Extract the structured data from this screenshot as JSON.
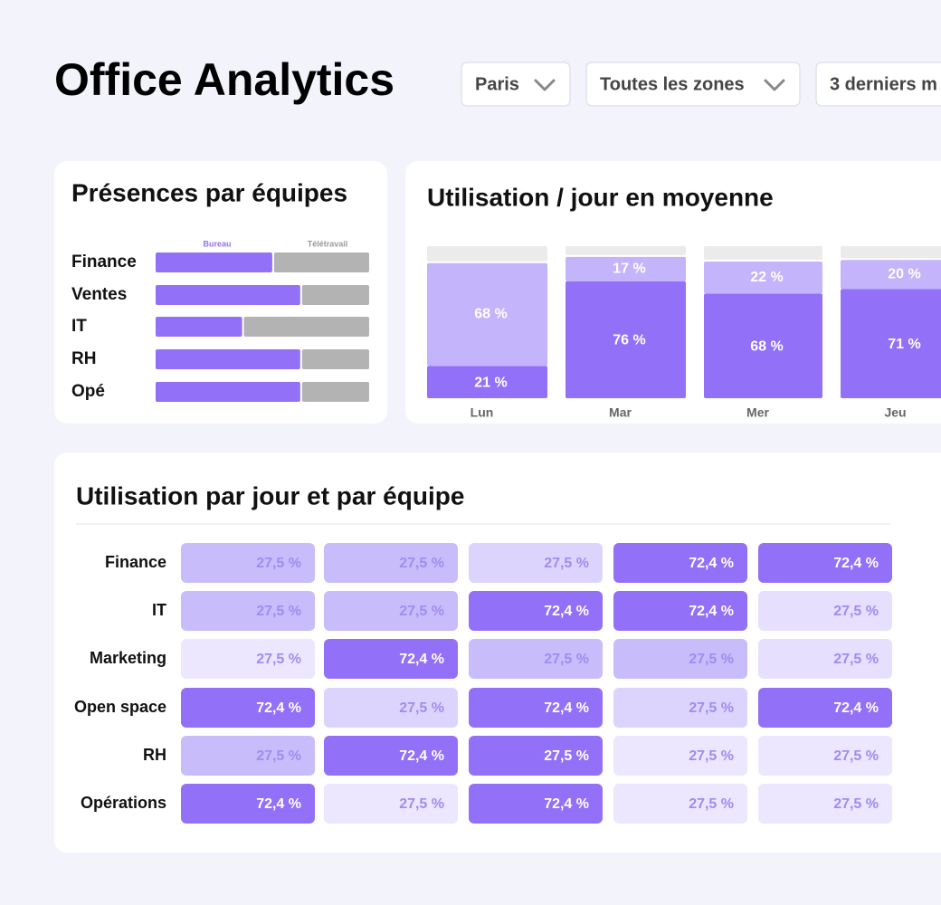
{
  "header": {
    "title": "Office Analytics",
    "filters": [
      "Paris",
      "Toutes les zones",
      "3 derniers m"
    ]
  },
  "chart_data": [
    {
      "type": "stacked-hbar",
      "title": "Présences par équipes",
      "categories": [
        "Finance",
        "Ventes",
        "IT",
        "RH",
        "Opé"
      ],
      "xlim": [
        0,
        100
      ],
      "series": [
        {
          "name": "Bureau",
          "color": "#9270f8",
          "values": [
            55,
            68,
            41,
            68,
            68
          ]
        },
        {
          "name": "Télétravail",
          "color": "#b3b3b3",
          "values": [
            45,
            32,
            59,
            32,
            32
          ]
        }
      ]
    },
    {
      "type": "stacked-bar",
      "title": "Utilisation / jour en moyenne",
      "categories": [
        "Lun",
        "Mar",
        "Mer",
        "Jeu"
      ],
      "ylim": [
        0,
        100
      ],
      "series": [
        {
          "color": "#9270f8",
          "values": [
            21,
            76,
            68,
            71
          ],
          "value_labels": [
            "21 %",
            "76 %",
            "68 %",
            "71 %"
          ]
        },
        {
          "color": "#c3b4fb",
          "values": [
            68,
            17,
            22,
            20
          ],
          "value_labels": [
            "68 %",
            "17 %",
            "22 %",
            "20 %"
          ]
        },
        {
          "color": "#ebebeb",
          "values": [
            11,
            7,
            10,
            9
          ]
        }
      ]
    },
    {
      "type": "heatmap",
      "title": "Utilisation par jour et par équipe",
      "rows": [
        "Finance",
        "IT",
        "Marketing",
        "Open space",
        "RH",
        "Opérations"
      ],
      "values": [
        [
          27.5,
          27.5,
          27.5,
          72.4,
          72.4
        ],
        [
          27.5,
          27.5,
          72.4,
          72.4,
          27.5
        ],
        [
          27.5,
          72.4,
          27.5,
          27.5,
          27.5
        ],
        [
          72.4,
          27.5,
          72.4,
          27.5,
          72.4
        ],
        [
          27.5,
          72.4,
          27.5,
          27.5,
          27.5
        ],
        [
          72.4,
          27.5,
          72.4,
          27.5,
          27.5
        ]
      ],
      "value_labels": [
        [
          "27,5 %",
          "27,5 %",
          "27,5 %",
          "72,4 %",
          "72,4 %"
        ],
        [
          "27,5 %",
          "27,5 %",
          "72,4 %",
          "72,4 %",
          "27,5 %"
        ],
        [
          "27,5 %",
          "72,4 %",
          "27,5 %",
          "27,5 %",
          "27,5 %"
        ],
        [
          "72,4 %",
          "27,5 %",
          "72,4 %",
          "27,5 %",
          "72,4 %"
        ],
        [
          "27,5 %",
          "72,4 %",
          "27,5 %",
          "27,5 %",
          "27,5 %"
        ],
        [
          "72,4 %",
          "27,5 %",
          "72,4 %",
          "27,5 %",
          "27,5 %"
        ]
      ],
      "colors": [
        [
          "#c9bcfb",
          "#c9bcfb",
          "#ddd4fd",
          "#9270f8",
          "#9270f8"
        ],
        [
          "#c9bcfb",
          "#c9bcfb",
          "#9270f8",
          "#9270f8",
          "#e6dffe"
        ],
        [
          "#ece6fe",
          "#9270f8",
          "#c9bcfb",
          "#c9bcfb",
          "#e6dffe"
        ],
        [
          "#9270f8",
          "#ddd4fd",
          "#9270f8",
          "#ddd4fd",
          "#9270f8"
        ],
        [
          "#c9bcfb",
          "#9270f8",
          "#9270f8",
          "#ece6fe",
          "#ece6fe"
        ],
        [
          "#9270f8",
          "#ece6fe",
          "#9270f8",
          "#ece6fe",
          "#ece6fe"
        ]
      ]
    }
  ]
}
